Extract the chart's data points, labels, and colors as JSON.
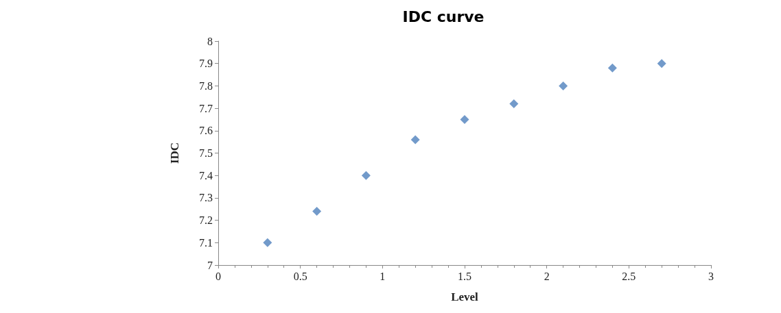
{
  "chart_data": {
    "type": "scatter",
    "title": "IDC curve",
    "xlabel": "Level",
    "ylabel": "IDC",
    "x": [
      0.3,
      0.6,
      0.9,
      1.2,
      1.5,
      1.8,
      2.1,
      2.4,
      2.7
    ],
    "series": [
      {
        "color": "#4f81bd",
        "values": [
          7.1,
          7.24,
          7.4,
          7.56,
          7.65,
          7.72,
          7.8,
          7.88,
          7.9
        ]
      }
    ],
    "xlim": [
      0,
      3
    ],
    "xticks": [
      0,
      0.5,
      1,
      1.5,
      2,
      2.5,
      3
    ],
    "ylim": [
      7,
      8
    ],
    "yticks": [
      7,
      7.1,
      7.2,
      7.3,
      7.4,
      7.5,
      7.6,
      7.7,
      7.8,
      7.9,
      8
    ],
    "grid": false,
    "marker": "diamond"
  }
}
